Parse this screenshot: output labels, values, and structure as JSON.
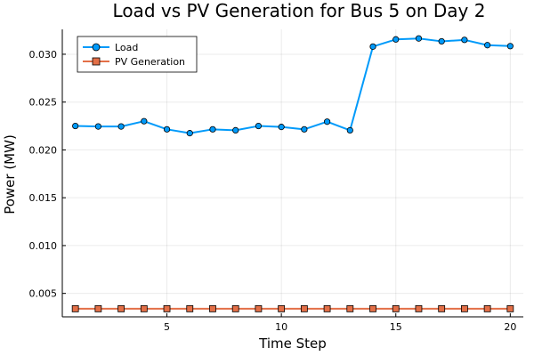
{
  "chart_data": {
    "type": "line",
    "title": "Load vs PV Generation for Bus 5 on Day 2",
    "xlabel": "Time Step",
    "ylabel": "Power (MW)",
    "xlim": [
      0.43,
      20.57
    ],
    "ylim": [
      0.00255,
      0.0326
    ],
    "x_ticks": [
      5,
      10,
      15,
      20
    ],
    "y_ticks": [
      0.005,
      0.01,
      0.015,
      0.02,
      0.025,
      0.03
    ],
    "y_tick_labels": [
      "0.005",
      "0.010",
      "0.015",
      "0.020",
      "0.025",
      "0.030"
    ],
    "grid": true,
    "legend_position": "top-left",
    "x": [
      1,
      2,
      3,
      4,
      5,
      6,
      7,
      8,
      9,
      10,
      11,
      12,
      13,
      14,
      15,
      16,
      17,
      18,
      19,
      20
    ],
    "series": [
      {
        "name": "Load",
        "color": "#009AFA",
        "marker": "circle",
        "values": [
          0.0225,
          0.02245,
          0.02245,
          0.023,
          0.02215,
          0.02175,
          0.02215,
          0.02205,
          0.0225,
          0.0224,
          0.02215,
          0.02295,
          0.02205,
          0.0308,
          0.03155,
          0.03165,
          0.03135,
          0.0315,
          0.03095,
          0.03085
        ]
      },
      {
        "name": "PV Generation",
        "color": "#E36F47",
        "marker": "square",
        "values": [
          0.0034,
          0.0034,
          0.0034,
          0.0034,
          0.0034,
          0.0034,
          0.0034,
          0.0034,
          0.0034,
          0.0034,
          0.0034,
          0.0034,
          0.0034,
          0.0034,
          0.0034,
          0.0034,
          0.0034,
          0.0034,
          0.0034,
          0.0034
        ]
      }
    ]
  }
}
